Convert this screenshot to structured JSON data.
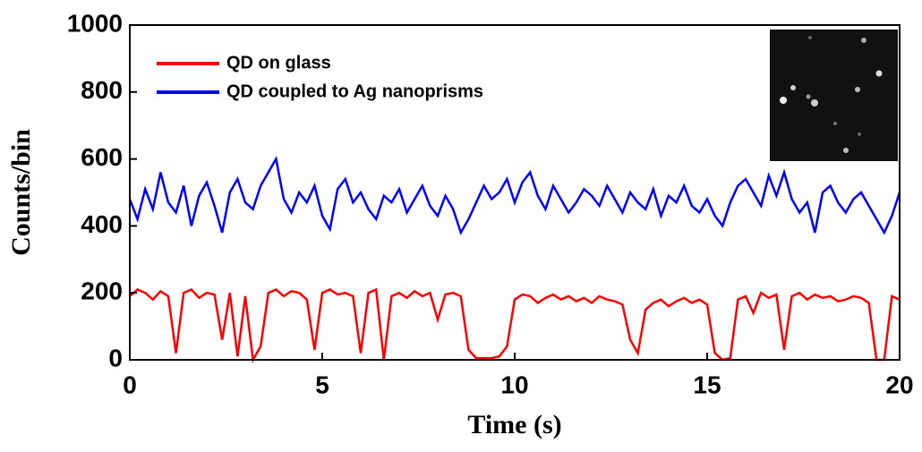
{
  "chart_data": {
    "type": "line",
    "x_label": "Time (s)",
    "y_label": "Counts/bin",
    "x": [
      0,
      0.2,
      0.4,
      0.6,
      0.8,
      1,
      1.2,
      1.4,
      1.6,
      1.8,
      2,
      2.2,
      2.4,
      2.6,
      2.8,
      3,
      3.2,
      3.4,
      3.6,
      3.8,
      4,
      4.2,
      4.4,
      4.6,
      4.8,
      5,
      5.2,
      5.4,
      5.6,
      5.8,
      6,
      6.2,
      6.4,
      6.6,
      6.8,
      7,
      7.2,
      7.4,
      7.6,
      7.8,
      8,
      8.2,
      8.4,
      8.6,
      8.8,
      9,
      9.2,
      9.4,
      9.6,
      9.8,
      10,
      10.2,
      10.4,
      10.6,
      10.8,
      11,
      11.2,
      11.4,
      11.6,
      11.8,
      12,
      12.2,
      12.4,
      12.6,
      12.8,
      13,
      13.2,
      13.4,
      13.6,
      13.8,
      14,
      14.2,
      14.4,
      14.6,
      14.8,
      15,
      15.2,
      15.4,
      15.6,
      15.8,
      16,
      16.2,
      16.4,
      16.6,
      16.8,
      17,
      17.2,
      17.4,
      17.6,
      17.8,
      18,
      18.2,
      18.4,
      18.6,
      18.8,
      19,
      19.2,
      19.4,
      19.6,
      19.8,
      20
    ],
    "series": [
      {
        "name": "QD on glass",
        "color": "#ff0000",
        "values": [
          190,
          210,
          200,
          180,
          205,
          190,
          20,
          200,
          210,
          185,
          200,
          195,
          60,
          200,
          10,
          190,
          0,
          40,
          200,
          210,
          190,
          205,
          200,
          180,
          30,
          200,
          210,
          195,
          200,
          190,
          20,
          200,
          210,
          0,
          190,
          200,
          185,
          205,
          190,
          200,
          120,
          195,
          200,
          190,
          30,
          5,
          5,
          5,
          10,
          40,
          180,
          195,
          190,
          170,
          185,
          195,
          180,
          190,
          175,
          185,
          170,
          190,
          180,
          175,
          165,
          60,
          20,
          150,
          170,
          180,
          160,
          175,
          185,
          170,
          180,
          165,
          20,
          0,
          5,
          180,
          190,
          140,
          200,
          185,
          195,
          30,
          190,
          200,
          180,
          195,
          185,
          190,
          175,
          180,
          190,
          185,
          170,
          0,
          0,
          190,
          180
        ]
      },
      {
        "name": "QD coupled to Ag nanoprisms",
        "color": "#0000ff",
        "values": [
          480,
          420,
          510,
          450,
          560,
          470,
          440,
          520,
          400,
          490,
          530,
          460,
          380,
          500,
          540,
          470,
          450,
          520,
          560,
          600,
          480,
          440,
          500,
          470,
          520,
          430,
          390,
          510,
          540,
          470,
          500,
          450,
          420,
          490,
          470,
          510,
          440,
          480,
          520,
          460,
          430,
          490,
          450,
          380,
          420,
          470,
          520,
          480,
          500,
          540,
          470,
          530,
          560,
          490,
          450,
          520,
          480,
          440,
          470,
          510,
          490,
          460,
          520,
          480,
          440,
          500,
          470,
          450,
          510,
          430,
          490,
          470,
          520,
          460,
          440,
          480,
          430,
          400,
          470,
          520,
          540,
          500,
          460,
          550,
          490,
          560,
          480,
          440,
          470,
          380,
          500,
          520,
          470,
          440,
          480,
          500,
          460,
          420,
          380,
          430,
          500
        ]
      }
    ],
    "xlim": [
      0,
      20
    ],
    "xticks": [
      0,
      5,
      10,
      15,
      20
    ],
    "ylim": [
      0,
      1000
    ],
    "yticks": [
      0,
      200,
      400,
      600,
      800,
      1000
    ],
    "legend": "upper left"
  }
}
